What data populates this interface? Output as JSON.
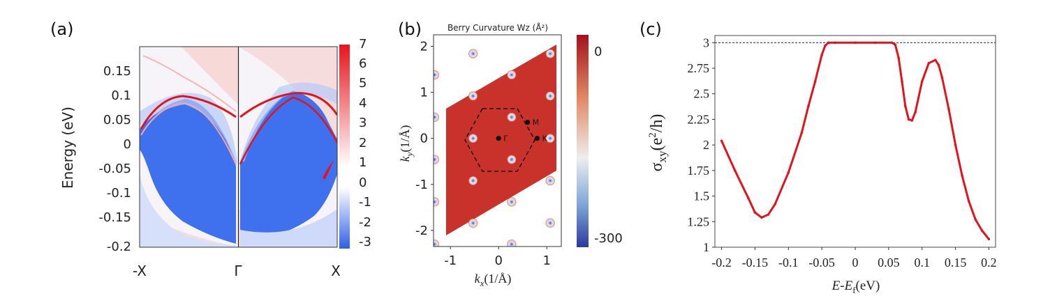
{
  "colors": {
    "red": "#e0141c",
    "blue": "#3a6ff0",
    "bz_red": "#c8322b",
    "dark_red": "#a3121c",
    "dark_blue": "#2b3a9e"
  },
  "chart_data": [
    {
      "panel_label": "(a)",
      "type": "heatmap",
      "title": "",
      "ylabel": "Energy (eV)",
      "ylim": [
        -0.2,
        0.2
      ],
      "yticks": [
        "0.15",
        "0.1",
        "0.05",
        "0",
        "-0.05",
        "-0.1",
        "-0.15",
        "-0.2"
      ],
      "ytick_values": [
        0.15,
        0.1,
        0.05,
        0,
        -0.05,
        -0.1,
        -0.15,
        -0.2
      ],
      "xticks": [
        "-X",
        "Γ",
        "X"
      ],
      "colorbar": {
        "range": [
          -3,
          7
        ],
        "ticks": [
          "7",
          "6",
          "5",
          "4",
          "3",
          "2",
          "1",
          "0",
          "-1",
          "-2",
          "-3"
        ],
        "tick_values": [
          7,
          6,
          5,
          4,
          3,
          2,
          1,
          0,
          -1,
          -2,
          -3
        ]
      }
    },
    {
      "panel_label": "(b)",
      "type": "heatmap",
      "title": "Berry Curvature Wz (Å²)",
      "xlabel_main": "k",
      "xlabel_sub": "x",
      "xlabel_rest": "(1/Å)",
      "ylabel_main": "k",
      "ylabel_sub": "y",
      "ylabel_rest": "(1/Å)",
      "xlim": [
        -1.35,
        1.3
      ],
      "ylim": [
        -2.35,
        2.25
      ],
      "xticks": [
        "-1",
        "0",
        "1"
      ],
      "xtick_values": [
        -1,
        0,
        1
      ],
      "yticks": [
        "2",
        "1",
        "0",
        "-1",
        "-2"
      ],
      "ytick_values": [
        2,
        1,
        0,
        -1,
        -2
      ],
      "points": [
        {
          "label": "Γ",
          "x": 0.0,
          "y": 0.0
        },
        {
          "label": "M",
          "x": 0.6,
          "y": 0.35
        },
        {
          "label": "K",
          "x": 0.8,
          "y": 0.0
        }
      ],
      "colorbar": {
        "range": [
          -300,
          0
        ],
        "ticks": [
          "0",
          "-300"
        ],
        "tick_values": [
          0,
          -300
        ]
      }
    },
    {
      "panel_label": "(c)",
      "type": "line",
      "title": "",
      "xlabel_E": "E",
      "xlabel_minus": "-",
      "xlabel_Ef": "E",
      "xlabel_f": "f",
      "xlabel_unit": "(eV)",
      "ylabel_sigma": "σ",
      "ylabel_sub": "xy",
      "ylabel_open": "(e",
      "ylabel_sup": "2",
      "ylabel_close": "/h)",
      "xlim": [
        -0.21,
        0.21
      ],
      "ylim": [
        1.0,
        3.07
      ],
      "xticks": [
        "-0.2",
        "-0.15",
        "-0.1",
        "-0.05",
        "0",
        "0.05",
        "0.1",
        "0.15",
        "0.2"
      ],
      "xtick_values": [
        -0.2,
        -0.15,
        -0.1,
        -0.05,
        0,
        0.05,
        0.1,
        0.15,
        0.2
      ],
      "yticks": [
        "3",
        "2.75",
        "2.5",
        "2.25",
        "2",
        "1.75",
        "1.5",
        "1.25",
        "1"
      ],
      "ytick_values": [
        3,
        2.75,
        2.5,
        2.25,
        2,
        1.75,
        1.5,
        1.25,
        1
      ],
      "reference_line": 3.0,
      "series": [
        {
          "name": "sigma_xy",
          "x": [
            -0.2,
            -0.18,
            -0.16,
            -0.15,
            -0.14,
            -0.13,
            -0.12,
            -0.1,
            -0.08,
            -0.07,
            -0.06,
            -0.05,
            -0.045,
            -0.04,
            -0.03,
            0.0,
            0.03,
            0.055,
            0.06,
            0.065,
            0.07,
            0.075,
            0.08,
            0.085,
            0.09,
            0.1,
            0.11,
            0.12,
            0.125,
            0.13,
            0.14,
            0.15,
            0.16,
            0.17,
            0.18,
            0.19,
            0.2
          ],
          "y": [
            2.04,
            1.75,
            1.48,
            1.34,
            1.29,
            1.32,
            1.42,
            1.73,
            2.12,
            2.38,
            2.62,
            2.88,
            2.97,
            3.0,
            3.0,
            3.0,
            3.0,
            3.0,
            2.98,
            2.85,
            2.62,
            2.38,
            2.25,
            2.24,
            2.32,
            2.62,
            2.8,
            2.83,
            2.78,
            2.66,
            2.35,
            2.0,
            1.7,
            1.45,
            1.27,
            1.16,
            1.08
          ]
        }
      ]
    }
  ]
}
